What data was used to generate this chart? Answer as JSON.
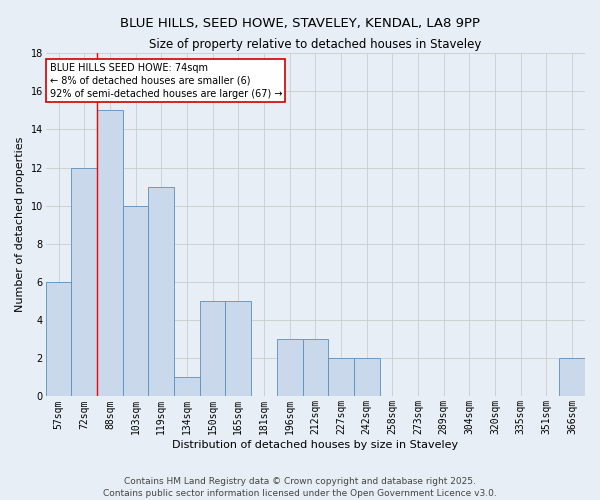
{
  "title1": "BLUE HILLS, SEED HOWE, STAVELEY, KENDAL, LA8 9PP",
  "title2": "Size of property relative to detached houses in Staveley",
  "xlabel": "Distribution of detached houses by size in Staveley",
  "ylabel": "Number of detached properties",
  "categories": [
    "57sqm",
    "72sqm",
    "88sqm",
    "103sqm",
    "119sqm",
    "134sqm",
    "150sqm",
    "165sqm",
    "181sqm",
    "196sqm",
    "212sqm",
    "227sqm",
    "242sqm",
    "258sqm",
    "273sqm",
    "289sqm",
    "304sqm",
    "320sqm",
    "335sqm",
    "351sqm",
    "366sqm"
  ],
  "values": [
    6,
    12,
    15,
    10,
    11,
    1,
    5,
    5,
    0,
    3,
    3,
    2,
    2,
    0,
    0,
    0,
    0,
    0,
    0,
    0,
    2
  ],
  "bar_color": "#c9d9eb",
  "bar_edge_color": "#5a8fc0",
  "grid_color": "#cccccc",
  "bg_color": "#e8eef5",
  "red_line_x": 1.5,
  "annotation_text": "BLUE HILLS SEED HOWE: 74sqm\n← 8% of detached houses are smaller (6)\n92% of semi-detached houses are larger (67) →",
  "annotation_box_color": "#ffffff",
  "annotation_box_edge": "#cc0000",
  "ylim": [
    0,
    18
  ],
  "yticks": [
    0,
    2,
    4,
    6,
    8,
    10,
    12,
    14,
    16,
    18
  ],
  "footer": "Contains HM Land Registry data © Crown copyright and database right 2025.\nContains public sector information licensed under the Open Government Licence v3.0.",
  "title1_fontsize": 9.5,
  "title2_fontsize": 8.5,
  "axis_label_fontsize": 8,
  "tick_fontsize": 7,
  "annotation_fontsize": 7,
  "footer_fontsize": 6.5
}
